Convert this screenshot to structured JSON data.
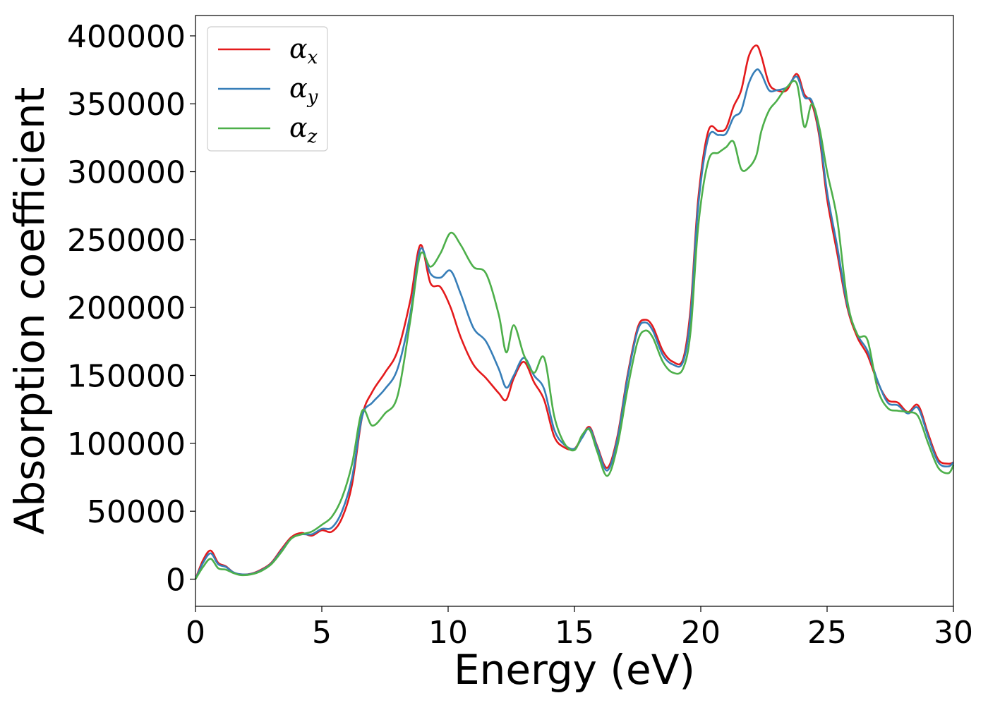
{
  "chart_data": {
    "type": "line",
    "title": "",
    "xlabel": "Energy (eV)",
    "ylabel": "Absorption coefficient",
    "xlim": [
      0,
      30
    ],
    "ylim": [
      -20000,
      415000
    ],
    "xticks": [
      0,
      5,
      10,
      15,
      20,
      25,
      30
    ],
    "yticks": [
      0,
      50000,
      100000,
      150000,
      200000,
      250000,
      300000,
      350000,
      400000
    ],
    "xtick_labels": [
      "0",
      "5",
      "10",
      "15",
      "20",
      "25",
      "30"
    ],
    "ytick_labels": [
      "0",
      "50000",
      "100000",
      "150000",
      "200000",
      "250000",
      "300000",
      "350000",
      "400000"
    ],
    "grid": false,
    "legend_position": "top-left",
    "series": [
      {
        "name": "αx",
        "legend_symbol": "α",
        "legend_sub": "x",
        "color": "#e41a1c",
        "x": [
          0,
          0.3,
          0.6,
          0.9,
          1.2,
          1.5,
          1.8,
          2.2,
          2.6,
          3.0,
          3.4,
          3.8,
          4.2,
          4.6,
          5.0,
          5.4,
          5.8,
          6.2,
          6.6,
          7.0,
          7.5,
          8.0,
          8.5,
          8.9,
          9.3,
          9.7,
          10.1,
          10.5,
          11.0,
          11.5,
          12.0,
          12.3,
          12.6,
          13.0,
          13.4,
          13.8,
          14.2,
          14.6,
          15.0,
          15.3,
          15.6,
          15.9,
          16.3,
          16.7,
          17.1,
          17.5,
          17.8,
          18.1,
          18.5,
          18.9,
          19.3,
          19.6,
          19.9,
          20.3,
          20.7,
          21.0,
          21.3,
          21.6,
          21.9,
          22.2,
          22.4,
          22.7,
          23.0,
          23.4,
          23.8,
          24.1,
          24.4,
          24.7,
          25.0,
          25.4,
          25.8,
          26.2,
          26.6,
          27.0,
          27.4,
          27.8,
          28.2,
          28.6,
          29.0,
          29.4,
          29.8,
          30.0
        ],
        "y": [
          0,
          14000,
          21000,
          12000,
          9500,
          5000,
          3500,
          4000,
          7000,
          12000,
          22000,
          31000,
          34000,
          32000,
          36000,
          35000,
          45000,
          70000,
          120000,
          138000,
          152000,
          168000,
          205000,
          246000,
          218000,
          215000,
          200000,
          178000,
          158000,
          148000,
          137000,
          132000,
          148000,
          160000,
          145000,
          132000,
          105000,
          97000,
          96000,
          105000,
          112000,
          98000,
          82000,
          105000,
          150000,
          185000,
          191000,
          186000,
          168000,
          160000,
          162000,
          200000,
          280000,
          330000,
          330000,
          332000,
          348000,
          360000,
          385000,
          393000,
          385000,
          365000,
          360000,
          360000,
          372000,
          357000,
          350000,
          325000,
          280000,
          240000,
          200000,
          178000,
          165000,
          145000,
          132000,
          130000,
          123000,
          128000,
          107000,
          88000,
          85000,
          86000
        ]
      },
      {
        "name": "αy",
        "legend_symbol": "α",
        "legend_sub": "y",
        "color": "#377eb8",
        "x": [
          0,
          0.3,
          0.6,
          0.9,
          1.2,
          1.5,
          1.8,
          2.2,
          2.6,
          3.0,
          3.4,
          3.8,
          4.2,
          4.6,
          5.0,
          5.4,
          5.8,
          6.2,
          6.6,
          7.0,
          7.5,
          8.0,
          8.5,
          8.9,
          9.3,
          9.7,
          10.1,
          10.5,
          11.0,
          11.5,
          12.0,
          12.3,
          12.6,
          13.0,
          13.4,
          13.8,
          14.2,
          14.6,
          15.0,
          15.3,
          15.6,
          15.9,
          16.3,
          16.7,
          17.1,
          17.5,
          17.8,
          18.1,
          18.5,
          18.9,
          19.3,
          19.6,
          19.9,
          20.3,
          20.7,
          21.0,
          21.3,
          21.6,
          21.9,
          22.2,
          22.4,
          22.7,
          23.0,
          23.4,
          23.8,
          24.1,
          24.4,
          24.7,
          25.0,
          25.4,
          25.8,
          26.2,
          26.6,
          27.0,
          27.4,
          27.8,
          28.2,
          28.6,
          29.0,
          29.4,
          29.8,
          30.0
        ],
        "y": [
          0,
          12000,
          19000,
          11000,
          9000,
          5000,
          3500,
          3800,
          6500,
          11500,
          21000,
          30000,
          33000,
          33000,
          37000,
          38000,
          50000,
          75000,
          120000,
          130000,
          140000,
          155000,
          195000,
          243000,
          225000,
          222000,
          227000,
          210000,
          185000,
          175000,
          155000,
          141000,
          150000,
          163000,
          150000,
          140000,
          110000,
          99000,
          96000,
          104000,
          111000,
          97000,
          80000,
          103000,
          148000,
          183000,
          189000,
          183000,
          165000,
          158000,
          160000,
          195000,
          275000,
          325000,
          327000,
          328000,
          340000,
          345000,
          365000,
          375000,
          372000,
          360000,
          360000,
          362000,
          370000,
          355000,
          352000,
          328000,
          285000,
          245000,
          202000,
          180000,
          168000,
          146000,
          130000,
          128000,
          122000,
          126000,
          105000,
          86000,
          83000,
          86000
        ]
      },
      {
        "name": "αz",
        "legend_symbol": "α",
        "legend_sub": "z",
        "color": "#4daf4a",
        "x": [
          0,
          0.3,
          0.6,
          0.9,
          1.2,
          1.5,
          1.8,
          2.2,
          2.6,
          3.0,
          3.4,
          3.8,
          4.2,
          4.6,
          5.0,
          5.4,
          5.8,
          6.2,
          6.6,
          7.0,
          7.5,
          8.0,
          8.5,
          8.9,
          9.3,
          9.7,
          10.1,
          10.5,
          11.0,
          11.5,
          12.0,
          12.3,
          12.6,
          13.0,
          13.4,
          13.8,
          14.2,
          14.6,
          15.0,
          15.3,
          15.6,
          15.9,
          16.3,
          16.7,
          17.1,
          17.5,
          17.8,
          18.1,
          18.5,
          18.9,
          19.3,
          19.6,
          19.9,
          20.3,
          20.7,
          21.0,
          21.3,
          21.6,
          21.9,
          22.2,
          22.4,
          22.7,
          23.0,
          23.4,
          23.8,
          24.1,
          24.4,
          24.7,
          25.0,
          25.4,
          25.8,
          26.2,
          26.6,
          27.0,
          27.4,
          27.8,
          28.2,
          28.6,
          29.0,
          29.4,
          29.8,
          30.0
        ],
        "y": [
          0,
          9000,
          15000,
          8000,
          7000,
          4500,
          3000,
          3500,
          6000,
          11000,
          20000,
          30000,
          33000,
          35000,
          40000,
          46000,
          60000,
          85000,
          124000,
          113000,
          122000,
          135000,
          190000,
          239000,
          230000,
          240000,
          255000,
          246000,
          230000,
          225000,
          195000,
          167000,
          187000,
          165000,
          152000,
          163000,
          120000,
          100000,
          95000,
          106000,
          110000,
          94000,
          76000,
          98000,
          140000,
          175000,
          183000,
          178000,
          160000,
          152000,
          155000,
          183000,
          260000,
          308000,
          314000,
          318000,
          322000,
          302000,
          303000,
          312000,
          330000,
          345000,
          352000,
          362000,
          365000,
          333000,
          350000,
          332000,
          300000,
          265000,
          205000,
          180000,
          176000,
          140000,
          126000,
          124000,
          123000,
          120000,
          100000,
          82000,
          78000,
          84000
        ]
      }
    ]
  }
}
